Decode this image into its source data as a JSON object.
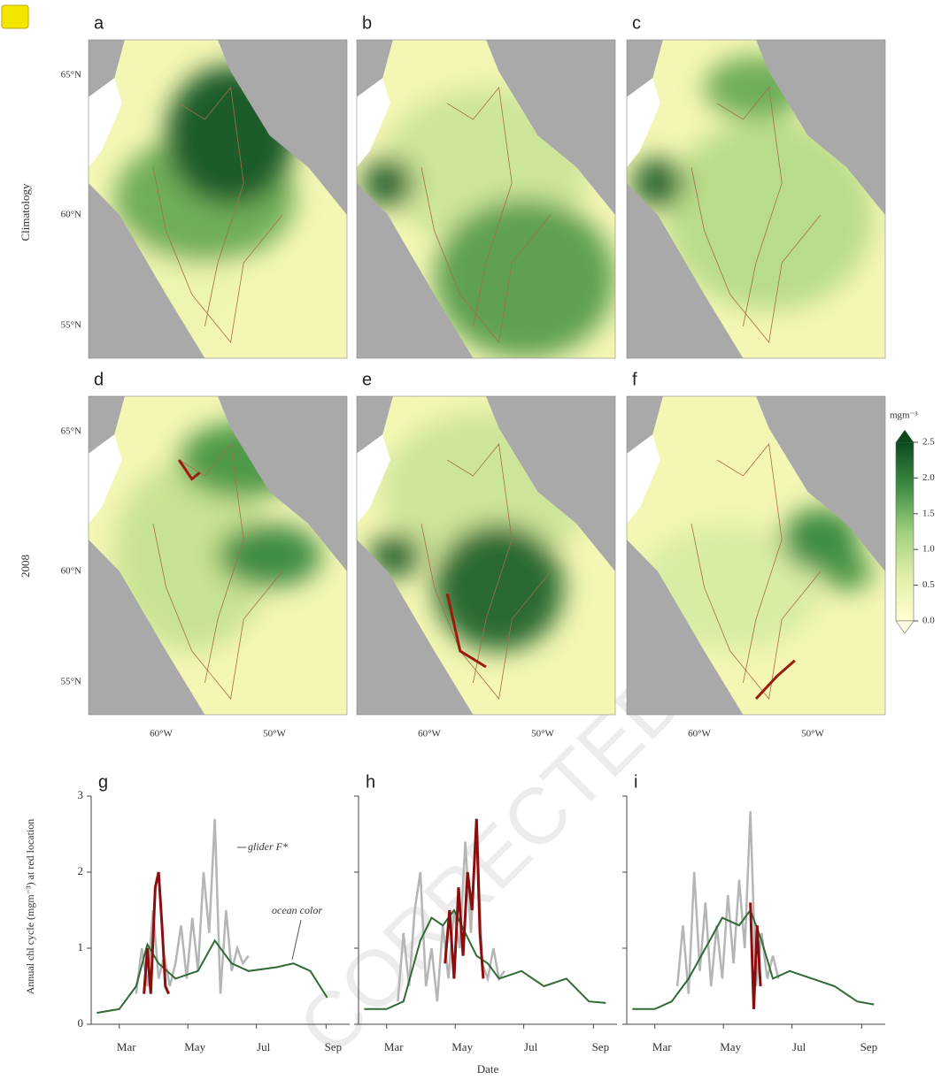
{
  "figure": {
    "map_panels": [
      "a",
      "b",
      "c",
      "d",
      "e",
      "f"
    ],
    "row_labels": [
      "Climatology",
      "2008"
    ],
    "lat_ticks": [
      "65°N",
      "60°N",
      "55°N"
    ],
    "lon_ticks": [
      "60°W",
      "50°W"
    ],
    "colorbar": {
      "unit": "mgm⁻³",
      "lim": [
        0,
        2.5
      ],
      "ticks": [
        {
          "value": 0,
          "label": "0.0"
        },
        0.5,
        {
          "value": 1,
          "label": "1.0"
        },
        1.5,
        {
          "value": 2,
          "label": "2.0"
        },
        2.5
      ]
    },
    "watermark": "CORRECTED"
  },
  "chart_data": [
    {
      "type": "line",
      "panel": "g",
      "ylabel": "Annual chl cycle (mgm⁻³) at red location",
      "annotations": [
        "glider F*",
        "ocean color"
      ],
      "xlim": [
        35,
        265
      ],
      "xticks": [
        {
          "value": 60,
          "label": "Mar"
        },
        {
          "value": 121,
          "label": "May"
        },
        {
          "value": 182,
          "label": "Jul"
        },
        {
          "value": 244,
          "label": "Sep"
        }
      ],
      "ylim": [
        0,
        3
      ],
      "yticks": [
        0,
        1,
        2,
        3
      ],
      "series": [
        {
          "color": "#b5b5b5",
          "x": [
            75,
            80,
            85,
            90,
            95,
            100,
            105,
            110,
            115,
            120,
            125,
            130,
            135,
            140,
            145,
            150,
            155,
            160,
            165,
            170,
            175
          ],
          "values": [
            0.4,
            1.0,
            0.5,
            1.5,
            0.6,
            0.9,
            0.5,
            0.8,
            1.3,
            0.6,
            1.4,
            0.7,
            2.0,
            1.2,
            2.7,
            0.4,
            1.5,
            0.7,
            1.0,
            0.8,
            0.9
          ]
        },
        {
          "color": "#2f6b35",
          "x": [
            40,
            60,
            75,
            85,
            95,
            110,
            130,
            145,
            160,
            175,
            200,
            215,
            230,
            245
          ],
          "values": [
            0.15,
            0.2,
            0.5,
            1.05,
            0.8,
            0.6,
            0.7,
            1.1,
            0.8,
            0.7,
            0.75,
            0.8,
            0.7,
            0.35
          ]
        },
        {
          "color": "#8b0e0e",
          "x": [
            82,
            85,
            88,
            92,
            95,
            98,
            101,
            104
          ],
          "values": [
            0.4,
            1.0,
            0.4,
            1.8,
            2.0,
            1.3,
            0.5,
            0.4
          ]
        }
      ]
    },
    {
      "type": "line",
      "panel": "h",
      "xlabel": "Date",
      "xlim": [
        35,
        265
      ],
      "xticks": [
        {
          "value": 60,
          "label": "Mar"
        },
        {
          "value": 121,
          "label": "May"
        },
        {
          "value": 182,
          "label": "Jul"
        },
        {
          "value": 244,
          "label": "Sep"
        }
      ],
      "ylim": [
        0,
        3
      ],
      "yticks": [
        0,
        1,
        2,
        3
      ],
      "series": [
        {
          "color": "#b5b5b5",
          "x": [
            70,
            75,
            80,
            85,
            90,
            95,
            100,
            105,
            110,
            115,
            120,
            125,
            130,
            135,
            140,
            145,
            150,
            155,
            160,
            165
          ],
          "values": [
            0.3,
            1.2,
            0.5,
            1.5,
            2.0,
            0.5,
            1.0,
            0.3,
            1.3,
            0.6,
            1.5,
            1.0,
            2.4,
            1.2,
            2.7,
            0.8,
            0.6,
            1.0,
            0.6,
            0.7
          ]
        },
        {
          "color": "#2f6b35",
          "x": [
            40,
            60,
            75,
            90,
            100,
            110,
            120,
            130,
            140,
            150,
            160,
            180,
            200,
            220,
            240,
            255
          ],
          "values": [
            0.2,
            0.2,
            0.3,
            1.1,
            1.4,
            1.3,
            1.5,
            1.2,
            0.9,
            0.8,
            0.6,
            0.7,
            0.5,
            0.6,
            0.3,
            0.28
          ]
        },
        {
          "color": "#8b0e0e",
          "x": [
            112,
            116,
            120,
            124,
            128,
            132,
            136,
            140,
            143,
            146
          ],
          "values": [
            0.8,
            1.5,
            0.6,
            1.8,
            0.9,
            2.0,
            1.5,
            2.7,
            1.2,
            0.6
          ]
        }
      ]
    },
    {
      "type": "line",
      "panel": "i",
      "xlim": [
        35,
        265
      ],
      "xticks": [
        {
          "value": 60,
          "label": "Mar"
        },
        {
          "value": 121,
          "label": "May"
        },
        {
          "value": 182,
          "label": "Jul"
        },
        {
          "value": 244,
          "label": "Sep"
        }
      ],
      "ylim": [
        0,
        3
      ],
      "yticks": [
        0,
        1,
        2,
        3
      ],
      "series": [
        {
          "color": "#b5b5b5",
          "x": [
            80,
            85,
            90,
            95,
            100,
            105,
            110,
            115,
            120,
            125,
            130,
            135,
            140,
            145,
            150,
            155,
            160,
            165,
            170
          ],
          "values": [
            0.5,
            1.3,
            0.4,
            2.0,
            0.7,
            1.6,
            0.5,
            1.3,
            0.6,
            1.7,
            0.8,
            1.9,
            1.0,
            2.8,
            0.5,
            1.2,
            0.6,
            0.9,
            0.6
          ]
        },
        {
          "color": "#2f6b35",
          "x": [
            40,
            60,
            75,
            90,
            105,
            120,
            135,
            145,
            155,
            165,
            180,
            200,
            220,
            240,
            255
          ],
          "values": [
            0.2,
            0.2,
            0.3,
            0.6,
            1.0,
            1.4,
            1.3,
            1.5,
            1.1,
            0.6,
            0.7,
            0.6,
            0.5,
            0.3,
            0.26
          ]
        },
        {
          "color": "#8b0e0e",
          "x": [
            145,
            148,
            151,
            154
          ],
          "values": [
            1.6,
            0.2,
            1.3,
            0.5
          ]
        }
      ]
    }
  ]
}
